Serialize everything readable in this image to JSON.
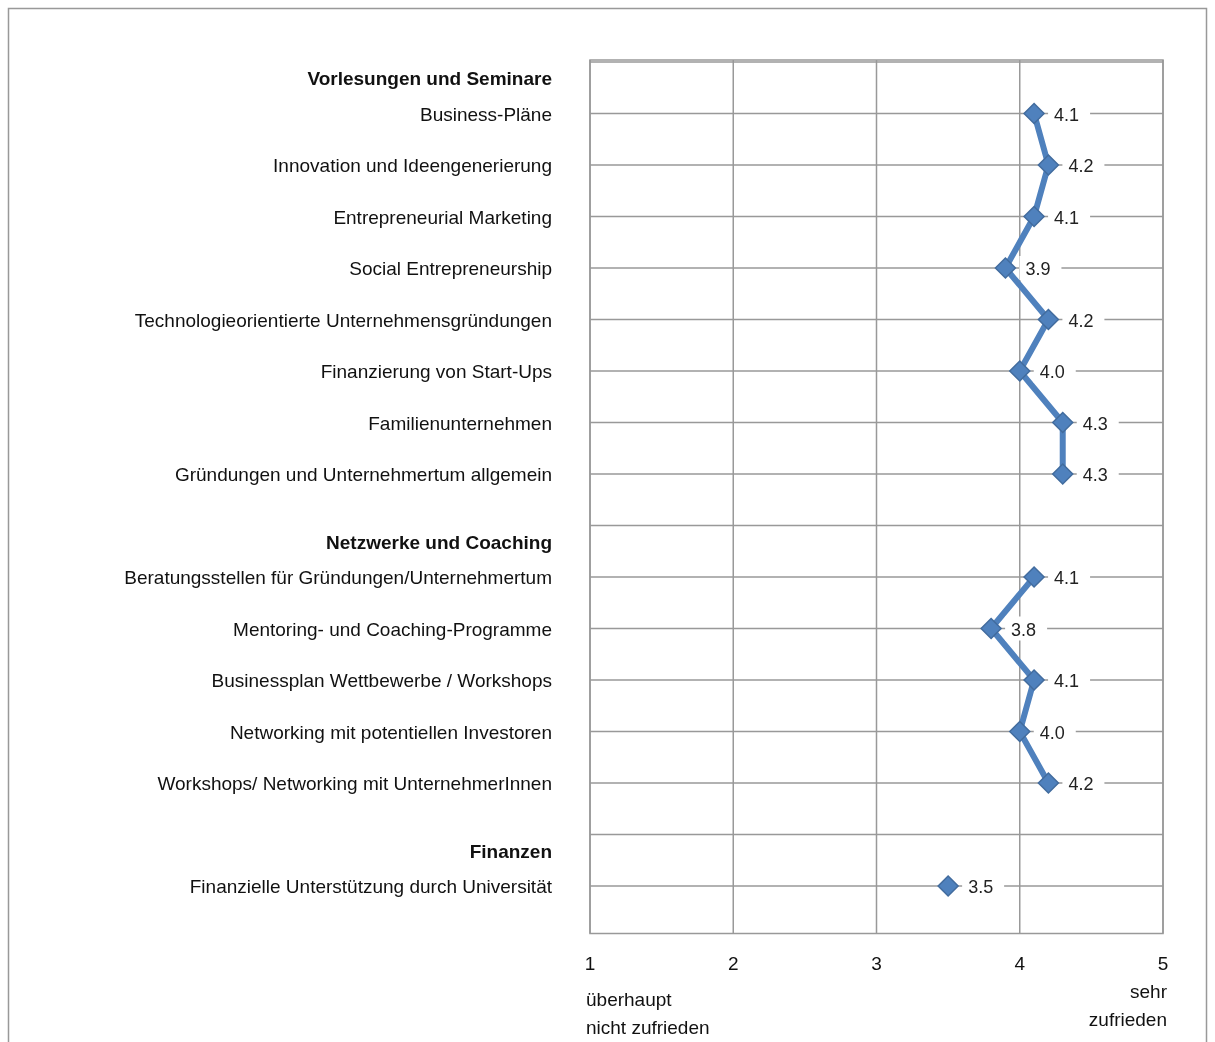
{
  "chart_data": {
    "type": "line",
    "orientation": "horizontal",
    "categories": [
      "Vorlesungen und Seminare",
      "Business-Pläne",
      "Innovation und Ideengenerierung",
      "Entrepreneurial Marketing",
      "Social Entrepreneurship",
      "Technologieorientierte Unternehmensgründungen",
      "Finanzierung von Start-Ups",
      "Familienunternehmen",
      "Gründungen und Unternehmertum allgemein",
      "Netzwerke und Coaching",
      "Beratungsstellen für Gründungen/Unternehmertum",
      "Mentoring- und Coaching-Programme",
      "Businessplan Wettbewerbe / Workshops",
      "Networking mit potentiellen Investoren",
      "Workshops/ Networking mit UnternehmerInnen",
      "Finanzen",
      "Finanzielle Unterstützung durch Universität"
    ],
    "series": [
      {
        "color": "#4f81bd",
        "values": [
          null,
          4.1,
          4.2,
          4.1,
          3.9,
          4.2,
          4.0,
          4.3,
          4.3,
          null,
          4.1,
          3.8,
          4.1,
          4.0,
          4.2,
          null,
          3.5
        ],
        "value_labels": [
          null,
          "4.1",
          "4.2",
          "4.1",
          "3.9",
          "4.2",
          "4.0",
          "4.3",
          "4.3",
          null,
          "4.1",
          "3.8",
          "4.1",
          "4.0",
          "4.2",
          null,
          "3.5"
        ]
      }
    ],
    "xlim": [
      1,
      5
    ],
    "xticks": [
      1,
      2,
      3,
      4,
      5
    ],
    "grid": true,
    "marker": "diamond",
    "line_style": "solid",
    "annotations": [
      "überhaupt nicht zufrieden",
      "sehr zufrieden"
    ]
  }
}
